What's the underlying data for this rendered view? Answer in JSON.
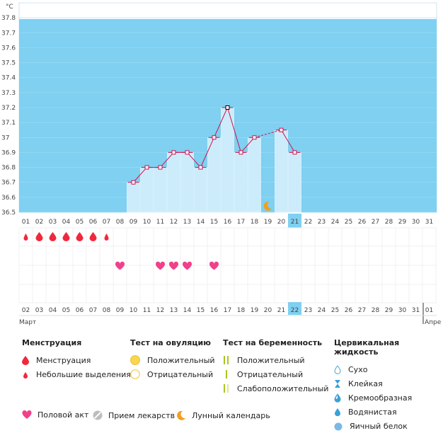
{
  "chart_data": {
    "type": "bar",
    "unit_label": "°C",
    "ylim": [
      36.5,
      37.9
    ],
    "yticks": [
      "36.5",
      "36.6",
      "36.7",
      "36.8",
      "36.9",
      "37",
      "37.1",
      "37.2",
      "37.3",
      "37.4",
      "37.5",
      "37.6",
      "37.7",
      "37.8"
    ],
    "cycle_days": [
      "01",
      "02",
      "03",
      "04",
      "05",
      "06",
      "07",
      "08",
      "09",
      "10",
      "11",
      "12",
      "13",
      "14",
      "15",
      "16",
      "17",
      "18",
      "19",
      "20",
      "21",
      "22",
      "23",
      "24",
      "25",
      "26",
      "27",
      "28",
      "29",
      "30",
      "31"
    ],
    "highlight_day": "21",
    "temperatures": [
      null,
      null,
      null,
      null,
      null,
      null,
      null,
      null,
      36.7,
      36.8,
      36.8,
      36.9,
      36.9,
      36.8,
      37.0,
      37.2,
      36.9,
      37.0,
      null,
      37.05,
      36.9,
      null,
      null,
      null,
      null,
      null,
      null,
      null,
      null,
      null,
      null
    ],
    "special_point_day": "16",
    "dashed_segment": [
      "18",
      "20"
    ],
    "moon_day": "19",
    "menstruation_days": [
      "01",
      "02",
      "03",
      "04",
      "05",
      "06",
      "07"
    ],
    "menstruation_small_days": [
      "01",
      "07"
    ],
    "intercourse_days": [
      "08",
      "11",
      "12",
      "13",
      "15"
    ],
    "dates": [
      "02",
      "03",
      "04",
      "05",
      "06",
      "07",
      "08",
      "09",
      "10",
      "11",
      "12",
      "13",
      "14",
      "15",
      "16",
      "17",
      "18",
      "19",
      "20",
      "21",
      "22",
      "23",
      "24",
      "25",
      "26",
      "27",
      "28",
      "29",
      "30",
      "31",
      "01"
    ],
    "weekend_dates": [
      "05",
      "06",
      "12",
      "13",
      "19",
      "20",
      "26",
      "27"
    ],
    "highlight_date": "22",
    "month_left": "Март",
    "month_right": "Апре",
    "colors": {
      "band": "#7fd0f1",
      "bar": "#cdecfb",
      "line": "#d0104c",
      "weekend": "#d0104c",
      "highlight": "#7fd0f1",
      "drop": "#f0283c",
      "heart": "#f0418a",
      "moon": "#f0a020",
      "yellow": "#f9d650"
    }
  },
  "legend": {
    "menstruation": {
      "title": "Менструация",
      "full": "Менструация",
      "small": "Небольшие выделения"
    },
    "ovulation": {
      "title": "Тест на овуляцию",
      "positive": "Положительный",
      "negative": "Отрицательный"
    },
    "pregnancy": {
      "title": "Тест на беременность",
      "positive": "Положительный",
      "negative": "Отрицательный",
      "weak": "Слабоположительный"
    },
    "cervical": {
      "title": "Цервикальная жидкость",
      "dry": "Сухо",
      "sticky": "Клейкая",
      "creamy": "Кремообразная",
      "watery": "Водянистая",
      "eggwhite": "Яичный белок"
    },
    "bottom": {
      "intercourse": "Половой акт",
      "medicine": "Прием лекарств",
      "lunar": "Лунный календарь"
    }
  }
}
